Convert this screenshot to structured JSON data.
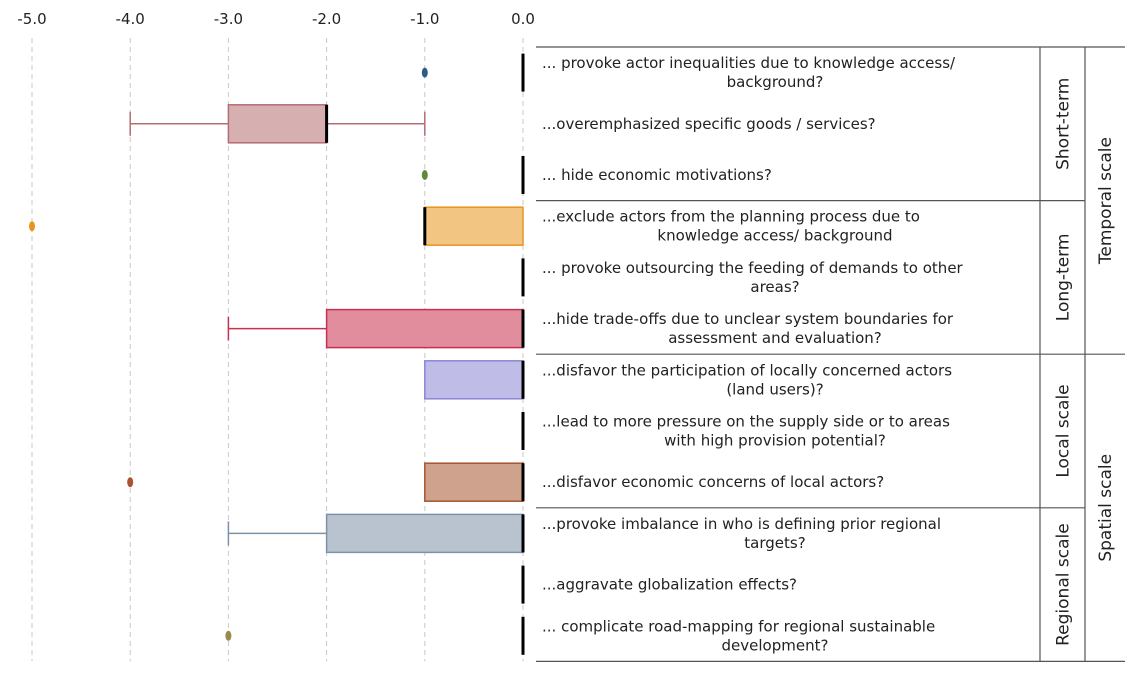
{
  "chart_data": {
    "type": "boxplot",
    "orientation": "horizontal",
    "xlim": [
      -5.0,
      0.0
    ],
    "x_ticks": [
      "-5.0",
      "-4.0",
      "-3.0",
      "-2.0",
      "-1.0",
      "0.0"
    ],
    "x_tick_values": [
      -5,
      -4,
      -3,
      -2,
      -1,
      0
    ],
    "grid": "vertical dashed",
    "rows": [
      {
        "question": [
          "... provoke actor inequalities due to knowledge access/",
          "background?"
        ],
        "color": "#2e5c8a",
        "outliers": [
          -1
        ],
        "box": null,
        "median": 0,
        "whisker_min": null
      },
      {
        "question": [
          "...overemphasized specific goods / services?"
        ],
        "color": "#b56d72",
        "outliers": [],
        "box": [
          -3,
          -2
        ],
        "median": -2,
        "whisker_min": -4,
        "whisker_max": -1
      },
      {
        "question": [
          "... hide economic motivations?"
        ],
        "color": "#5f8a3a",
        "outliers": [
          -1
        ],
        "box": null,
        "median": 0,
        "whisker_min": null
      },
      {
        "question": [
          "...exclude actors from the planning process due to",
          "knowledge access/ background"
        ],
        "color": "#e8951e",
        "outliers": [
          -5
        ],
        "box": [
          -1,
          0
        ],
        "median": -1,
        "whisker_min": null
      },
      {
        "question": [
          "... provoke outsourcing the feeding of demands to other",
          "areas?"
        ],
        "color": "#000000",
        "outliers": [],
        "box": null,
        "median": 0,
        "whisker_min": null
      },
      {
        "question": [
          "...hide trade-offs due to unclear system boundaries for",
          "assessment and evaluation?"
        ],
        "color": "#c9304f",
        "outliers": [],
        "box": [
          -2,
          0
        ],
        "median": 0,
        "whisker_min": -3
      },
      {
        "question": [
          "...disfavor the participation of locally concerned actors",
          "(land users)?"
        ],
        "color": "#8a86d6",
        "outliers": [],
        "box": [
          -1,
          0
        ],
        "median": 0,
        "whisker_min": null
      },
      {
        "question": [
          "...lead to more pressure on the supply side or to areas",
          "with high provision potential?"
        ],
        "color": "#000000",
        "outliers": [],
        "box": null,
        "median": 0,
        "whisker_min": null
      },
      {
        "question": [
          "...disfavor economic concerns of local actors?"
        ],
        "color": "#a6552e",
        "outliers": [
          -4
        ],
        "box": [
          -1,
          0
        ],
        "median": 0,
        "whisker_min": null
      },
      {
        "question": [
          "...provoke imbalance in who is defining prior regional",
          "targets?"
        ],
        "color": "#7d92a8",
        "outliers": [],
        "box": [
          -2,
          0
        ],
        "median": 0,
        "whisker_min": -3
      },
      {
        "question": [
          "...aggravate globalization effects?"
        ],
        "color": "#000000",
        "outliers": [],
        "box": null,
        "median": 0,
        "whisker_min": null
      },
      {
        "question": [
          "... complicate road-mapping for regional sustainable",
          "development?"
        ],
        "color": "#9a8a4a",
        "outliers": [
          -3
        ],
        "box": null,
        "median": 0,
        "whisker_min": null
      }
    ],
    "subgroups": [
      {
        "label": "Short-term",
        "rows": [
          0,
          2
        ]
      },
      {
        "label": "Long-term",
        "rows": [
          3,
          5
        ]
      },
      {
        "label": "Local scale",
        "rows": [
          6,
          8
        ]
      },
      {
        "label": "Regional scale",
        "rows": [
          9,
          11
        ]
      }
    ],
    "groups": [
      {
        "label": "Temporal scale",
        "rows": [
          0,
          5
        ]
      },
      {
        "label": "Spatial scale",
        "rows": [
          6,
          11
        ]
      }
    ]
  }
}
